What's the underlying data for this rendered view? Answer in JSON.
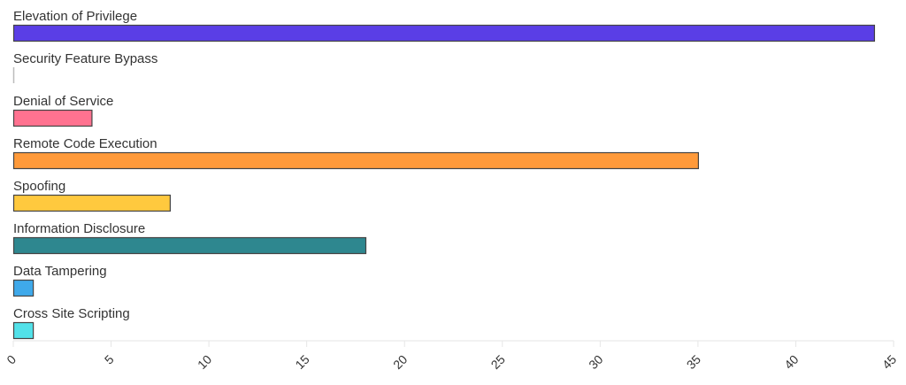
{
  "chart_data": {
    "type": "bar",
    "orientation": "horizontal",
    "title": "",
    "xlabel": "",
    "ylabel": "",
    "xlim": [
      0,
      45
    ],
    "ticks": [
      0,
      5,
      10,
      15,
      20,
      25,
      30,
      35,
      40,
      45
    ],
    "tick_labels": [
      "0",
      "5",
      "10",
      "15",
      "20",
      "25",
      "30",
      "35",
      "40",
      "45"
    ],
    "grid": false,
    "categories": [
      "Elevation of Privilege",
      "Security Feature Bypass",
      "Denial of Service",
      "Remote Code Execution",
      "Spoofing",
      "Information Disclosure",
      "Data Tampering",
      "Cross Site Scripting"
    ],
    "values": [
      44,
      0,
      4,
      35,
      8,
      18,
      1,
      1
    ],
    "colors": [
      "#5a3ee6",
      "#bbbbbb",
      "#ff7290",
      "#ff9a3a",
      "#ffc93e",
      "#2e878f",
      "#3fa9ea",
      "#52e1e9"
    ]
  }
}
